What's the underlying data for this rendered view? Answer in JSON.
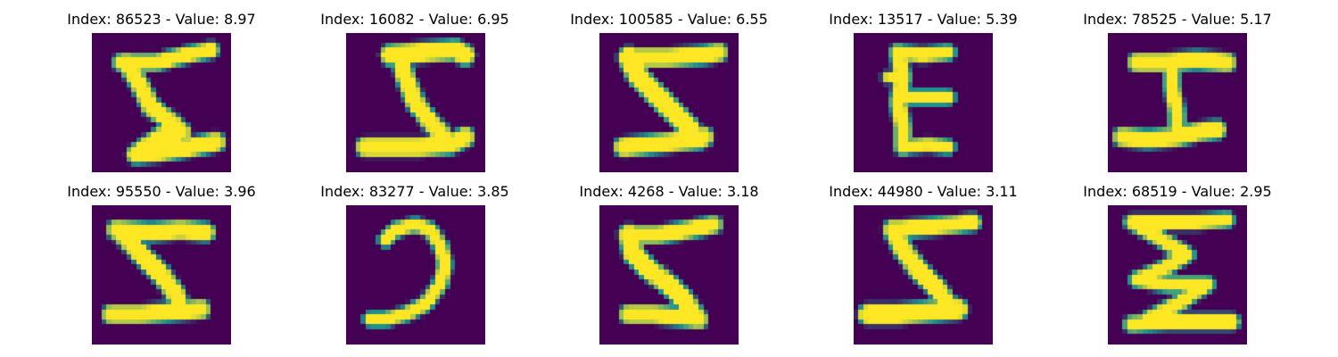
{
  "colors": {
    "background": "#440154",
    "stroke_core": "#fde725",
    "stroke_edge": "#21918c"
  },
  "panels": [
    {
      "index": "86523",
      "value": "8.97",
      "title": "Index: 86523 - Value: 8.97"
    },
    {
      "index": "16082",
      "value": "6.95",
      "title": "Index: 16082 - Value: 6.95"
    },
    {
      "index": "100585",
      "value": "6.55",
      "title": "Index: 100585 - Value: 6.55"
    },
    {
      "index": "13517",
      "value": "5.39",
      "title": "Index: 13517 - Value: 5.39"
    },
    {
      "index": "78525",
      "value": "5.17",
      "title": "Index: 78525 - Value: 5.17"
    },
    {
      "index": "95550",
      "value": "3.96",
      "title": "Index: 95550 - Value: 3.96"
    },
    {
      "index": "83277",
      "value": "3.85",
      "title": "Index: 83277 - Value: 3.85"
    },
    {
      "index": "4268",
      "value": "3.18",
      "title": "Index: 4268 - Value: 3.18"
    },
    {
      "index": "44980",
      "value": "3.11",
      "title": "Index: 44980 - Value: 3.11"
    },
    {
      "index": "68519",
      "value": "2.95",
      "title": "Index: 68519 - Value: 2.95"
    }
  ]
}
